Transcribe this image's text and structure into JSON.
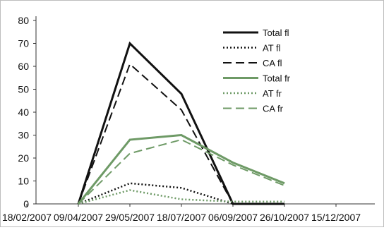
{
  "chart_data": {
    "type": "line",
    "title": "",
    "xlabel": "",
    "ylabel": "",
    "ylim": [
      0,
      80
    ],
    "yticks": [
      "0",
      "10",
      "20",
      "30",
      "40",
      "50",
      "60",
      "70",
      "80"
    ],
    "x_categories": [
      "18/02/2007",
      "09/04/2007",
      "29/05/2007",
      "18/07/2007",
      "06/09/2007",
      "26/10/2007",
      "15/12/2007"
    ],
    "x": [
      "09/04/2007",
      "29/05/2007",
      "18/07/2007",
      "06/09/2007",
      "26/10/2007"
    ],
    "legend_position": "top-right",
    "grid": false,
    "series": [
      {
        "name": "Total fl",
        "color": "#111111",
        "style": "solid-thick",
        "values": [
          0,
          70,
          48,
          0,
          0
        ]
      },
      {
        "name": "AT fl",
        "color": "#111111",
        "style": "dotted",
        "values": [
          0,
          9,
          7,
          0,
          0
        ]
      },
      {
        "name": "CA fl",
        "color": "#111111",
        "style": "dashed",
        "values": [
          0,
          61,
          41,
          0,
          0
        ]
      },
      {
        "name": "Total fr",
        "color": "#6e9a66",
        "style": "solid-thick",
        "values": [
          0,
          28,
          30,
          18,
          9
        ]
      },
      {
        "name": "AT fr",
        "color": "#6e9a66",
        "style": "dotted",
        "values": [
          0,
          6,
          2,
          1,
          1
        ]
      },
      {
        "name": "CA fr",
        "color": "#6e9a66",
        "style": "dashed",
        "values": [
          0,
          22,
          28,
          17,
          8
        ]
      }
    ]
  }
}
